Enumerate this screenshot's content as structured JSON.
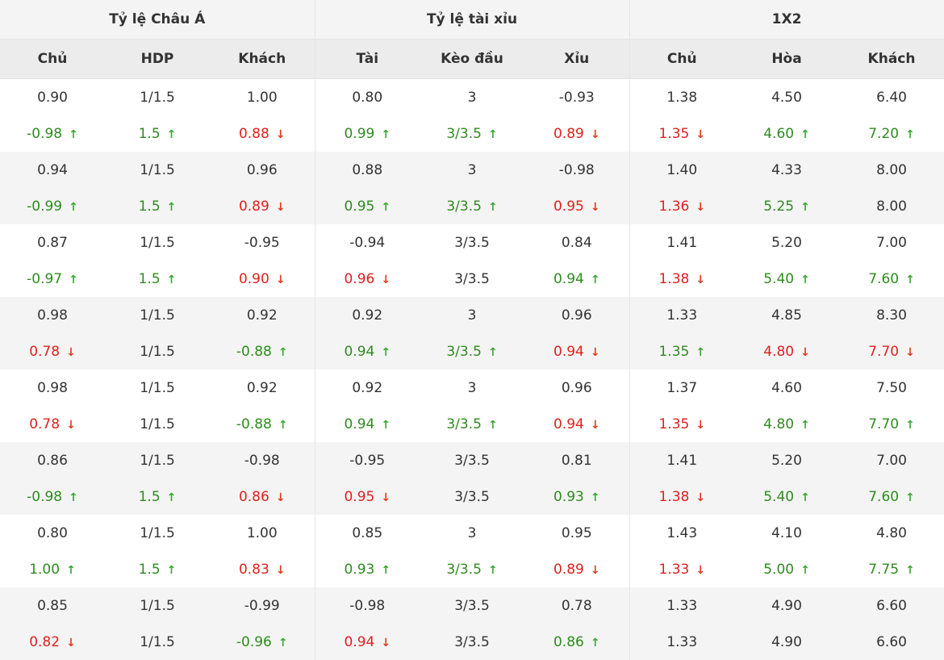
{
  "headers": {
    "groups": [
      "Tỷ lệ Châu Á",
      "Tỷ lệ tài xỉu",
      "1X2"
    ],
    "columns": [
      "Chủ",
      "HDP",
      "Khách",
      "Tài",
      "Kèo đầu",
      "Xỉu",
      "Chủ",
      "Hòa",
      "Khách"
    ]
  },
  "colors": {
    "up": "#2e8b1e",
    "down": "#e02020",
    "neutral": "#333333",
    "stripe": "#f4f4f4"
  },
  "icons": {
    "up": "arrow-up-icon",
    "down": "arrow-down-icon"
  },
  "blocks": [
    {
      "top": [
        {
          "v": "0.90"
        },
        {
          "v": "1/1.5"
        },
        {
          "v": "1.00"
        },
        {
          "v": "0.80"
        },
        {
          "v": "3"
        },
        {
          "v": "-0.93"
        },
        {
          "v": "1.38"
        },
        {
          "v": "4.50"
        },
        {
          "v": "6.40"
        }
      ],
      "bottom": [
        {
          "v": "-0.98",
          "t": "up"
        },
        {
          "v": "1.5",
          "t": "up"
        },
        {
          "v": "0.88",
          "t": "down"
        },
        {
          "v": "0.99",
          "t": "up"
        },
        {
          "v": "3/3.5",
          "t": "up"
        },
        {
          "v": "0.89",
          "t": "down"
        },
        {
          "v": "1.35",
          "t": "down"
        },
        {
          "v": "4.60",
          "t": "up"
        },
        {
          "v": "7.20",
          "t": "up"
        }
      ]
    },
    {
      "top": [
        {
          "v": "0.94"
        },
        {
          "v": "1/1.5"
        },
        {
          "v": "0.96"
        },
        {
          "v": "0.88"
        },
        {
          "v": "3"
        },
        {
          "v": "-0.98"
        },
        {
          "v": "1.40"
        },
        {
          "v": "4.33"
        },
        {
          "v": "8.00"
        }
      ],
      "bottom": [
        {
          "v": "-0.99",
          "t": "up"
        },
        {
          "v": "1.5",
          "t": "up"
        },
        {
          "v": "0.89",
          "t": "down"
        },
        {
          "v": "0.95",
          "t": "up"
        },
        {
          "v": "3/3.5",
          "t": "up"
        },
        {
          "v": "0.95",
          "t": "down"
        },
        {
          "v": "1.36",
          "t": "down"
        },
        {
          "v": "5.25",
          "t": "up"
        },
        {
          "v": "8.00"
        }
      ]
    },
    {
      "top": [
        {
          "v": "0.87"
        },
        {
          "v": "1/1.5"
        },
        {
          "v": "-0.95"
        },
        {
          "v": "-0.94"
        },
        {
          "v": "3/3.5"
        },
        {
          "v": "0.84"
        },
        {
          "v": "1.41"
        },
        {
          "v": "5.20"
        },
        {
          "v": "7.00"
        }
      ],
      "bottom": [
        {
          "v": "-0.97",
          "t": "up"
        },
        {
          "v": "1.5",
          "t": "up"
        },
        {
          "v": "0.90",
          "t": "down"
        },
        {
          "v": "0.96",
          "t": "down"
        },
        {
          "v": "3/3.5"
        },
        {
          "v": "0.94",
          "t": "up"
        },
        {
          "v": "1.38",
          "t": "down"
        },
        {
          "v": "5.40",
          "t": "up"
        },
        {
          "v": "7.60",
          "t": "up"
        }
      ]
    },
    {
      "top": [
        {
          "v": "0.98"
        },
        {
          "v": "1/1.5"
        },
        {
          "v": "0.92"
        },
        {
          "v": "0.92"
        },
        {
          "v": "3"
        },
        {
          "v": "0.96"
        },
        {
          "v": "1.33"
        },
        {
          "v": "4.85"
        },
        {
          "v": "8.30"
        }
      ],
      "bottom": [
        {
          "v": "0.78",
          "t": "down"
        },
        {
          "v": "1/1.5"
        },
        {
          "v": "-0.88",
          "t": "up"
        },
        {
          "v": "0.94",
          "t": "up"
        },
        {
          "v": "3/3.5",
          "t": "up"
        },
        {
          "v": "0.94",
          "t": "down"
        },
        {
          "v": "1.35",
          "t": "up"
        },
        {
          "v": "4.80",
          "t": "down"
        },
        {
          "v": "7.70",
          "t": "down"
        }
      ]
    },
    {
      "top": [
        {
          "v": "0.98"
        },
        {
          "v": "1/1.5"
        },
        {
          "v": "0.92"
        },
        {
          "v": "0.92"
        },
        {
          "v": "3"
        },
        {
          "v": "0.96"
        },
        {
          "v": "1.37"
        },
        {
          "v": "4.60"
        },
        {
          "v": "7.50"
        }
      ],
      "bottom": [
        {
          "v": "0.78",
          "t": "down"
        },
        {
          "v": "1/1.5"
        },
        {
          "v": "-0.88",
          "t": "up"
        },
        {
          "v": "0.94",
          "t": "up"
        },
        {
          "v": "3/3.5",
          "t": "up"
        },
        {
          "v": "0.94",
          "t": "down"
        },
        {
          "v": "1.35",
          "t": "down"
        },
        {
          "v": "4.80",
          "t": "up"
        },
        {
          "v": "7.70",
          "t": "up"
        }
      ]
    },
    {
      "top": [
        {
          "v": "0.86"
        },
        {
          "v": "1/1.5"
        },
        {
          "v": "-0.98"
        },
        {
          "v": "-0.95"
        },
        {
          "v": "3/3.5"
        },
        {
          "v": "0.81"
        },
        {
          "v": "1.41"
        },
        {
          "v": "5.20"
        },
        {
          "v": "7.00"
        }
      ],
      "bottom": [
        {
          "v": "-0.98",
          "t": "up"
        },
        {
          "v": "1.5",
          "t": "up"
        },
        {
          "v": "0.86",
          "t": "down"
        },
        {
          "v": "0.95",
          "t": "down"
        },
        {
          "v": "3/3.5"
        },
        {
          "v": "0.93",
          "t": "up"
        },
        {
          "v": "1.38",
          "t": "down"
        },
        {
          "v": "5.40",
          "t": "up"
        },
        {
          "v": "7.60",
          "t": "up"
        }
      ]
    },
    {
      "top": [
        {
          "v": "0.80"
        },
        {
          "v": "1/1.5"
        },
        {
          "v": "1.00"
        },
        {
          "v": "0.85"
        },
        {
          "v": "3"
        },
        {
          "v": "0.95"
        },
        {
          "v": "1.43"
        },
        {
          "v": "4.10"
        },
        {
          "v": "4.80"
        }
      ],
      "bottom": [
        {
          "v": "1.00",
          "t": "up"
        },
        {
          "v": "1.5",
          "t": "up"
        },
        {
          "v": "0.83",
          "t": "down"
        },
        {
          "v": "0.93",
          "t": "up"
        },
        {
          "v": "3/3.5",
          "t": "up"
        },
        {
          "v": "0.89",
          "t": "down"
        },
        {
          "v": "1.33",
          "t": "down"
        },
        {
          "v": "5.00",
          "t": "up"
        },
        {
          "v": "7.75",
          "t": "up"
        }
      ]
    },
    {
      "top": [
        {
          "v": "0.85"
        },
        {
          "v": "1/1.5"
        },
        {
          "v": "-0.99"
        },
        {
          "v": "-0.98"
        },
        {
          "v": "3/3.5"
        },
        {
          "v": "0.78"
        },
        {
          "v": "1.33"
        },
        {
          "v": "4.90"
        },
        {
          "v": "6.60"
        }
      ],
      "bottom": [
        {
          "v": "0.82",
          "t": "down"
        },
        {
          "v": "1/1.5"
        },
        {
          "v": "-0.96",
          "t": "up"
        },
        {
          "v": "0.94",
          "t": "down"
        },
        {
          "v": "3/3.5"
        },
        {
          "v": "0.86",
          "t": "up"
        },
        {
          "v": "1.33"
        },
        {
          "v": "4.90"
        },
        {
          "v": "6.60"
        }
      ]
    }
  ]
}
